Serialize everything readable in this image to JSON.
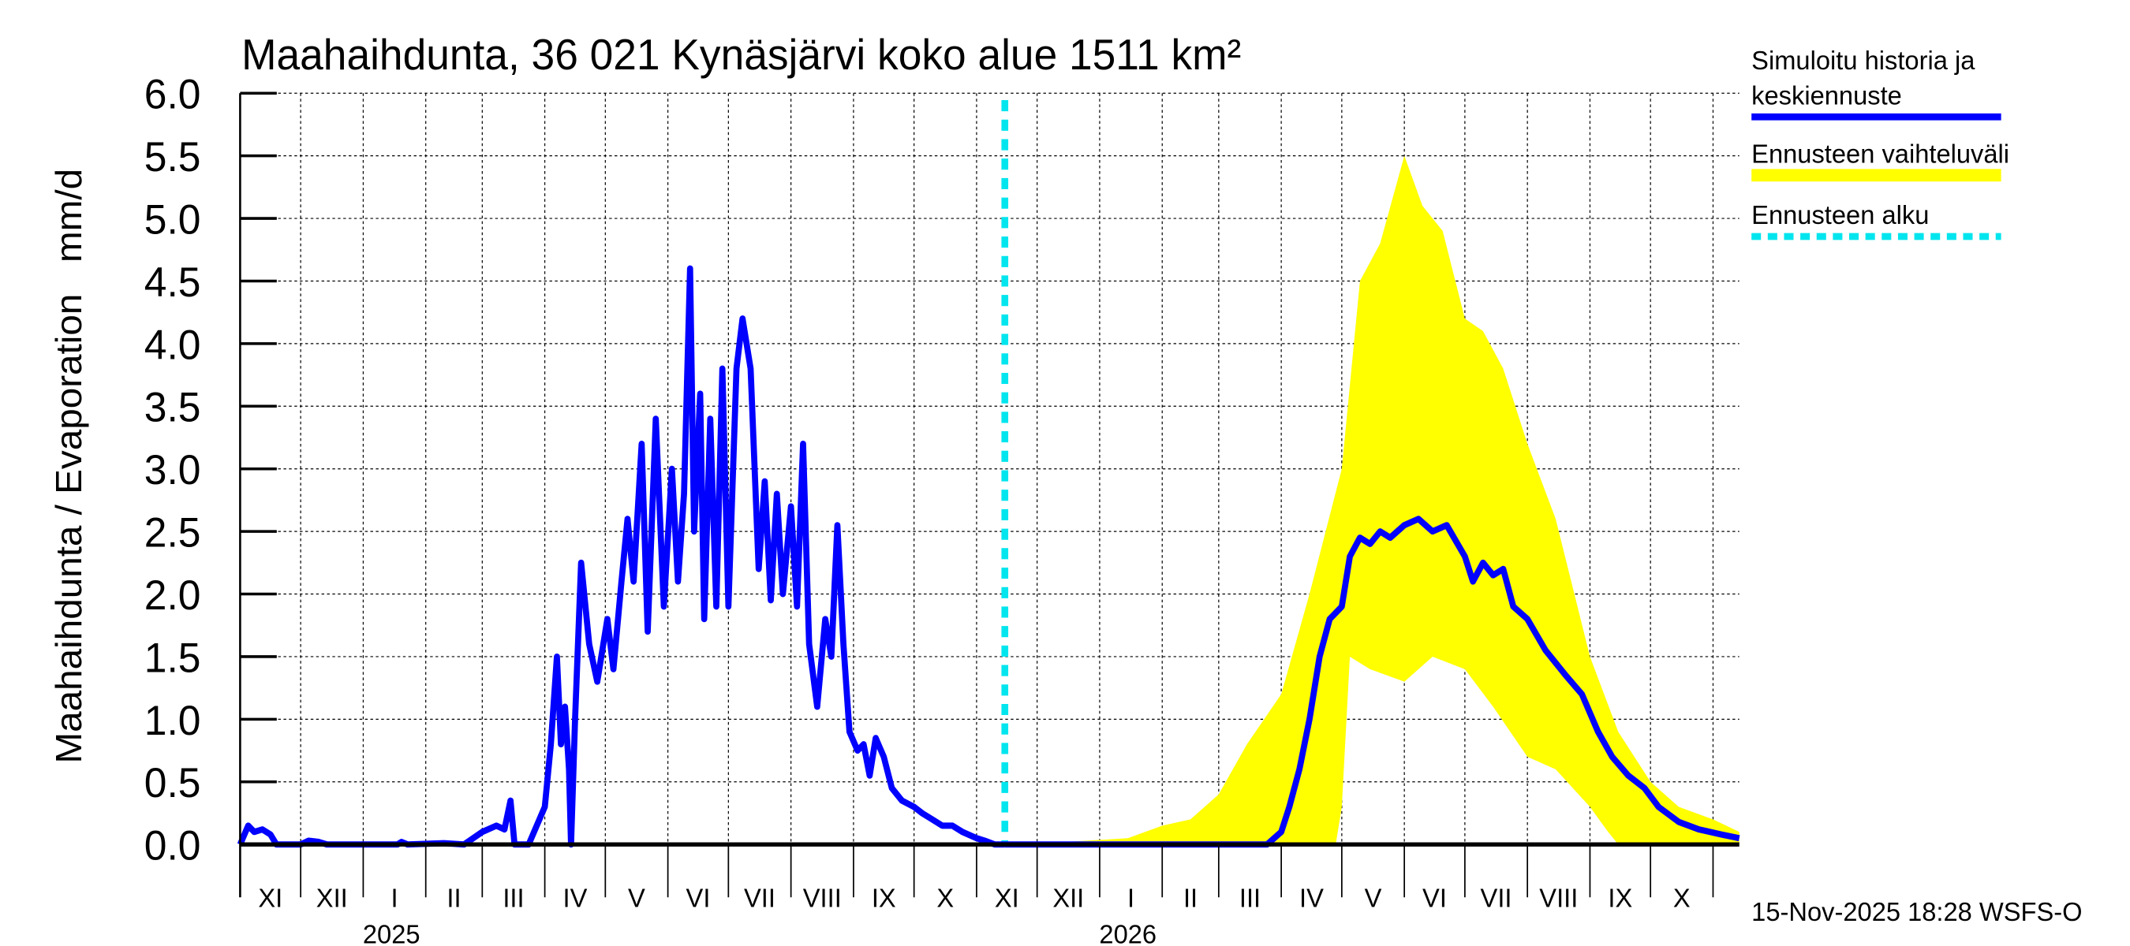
{
  "chart_data": {
    "type": "line",
    "title": "Maahaihdunta, 36 021 Kynäsjärvi koko alue 1511 km²",
    "ylabel": "Maahaihdunta / Evaporation   mm/d",
    "xlabel": "",
    "ylim": [
      0,
      6
    ],
    "xlim": [
      "2024-11-01",
      "2026-11-14"
    ],
    "yticks": [
      "0.0",
      "0.5",
      "1.0",
      "1.5",
      "2.0",
      "2.5",
      "3.0",
      "3.5",
      "4.0",
      "4.5",
      "5.0",
      "5.5",
      "6.0"
    ],
    "grid": true,
    "legend_position": "right",
    "months": [
      {
        "label": "XI",
        "start": "2024-11-01"
      },
      {
        "label": "XII",
        "start": "2024-12-01"
      },
      {
        "label": "I",
        "start": "2025-01-01"
      },
      {
        "label": "II",
        "start": "2025-02-01"
      },
      {
        "label": "III",
        "start": "2025-03-01"
      },
      {
        "label": "IV",
        "start": "2025-04-01"
      },
      {
        "label": "V",
        "start": "2025-05-01"
      },
      {
        "label": "VI",
        "start": "2025-06-01"
      },
      {
        "label": "VII",
        "start": "2025-07-01"
      },
      {
        "label": "VIII",
        "start": "2025-08-01"
      },
      {
        "label": "IX",
        "start": "2025-09-01"
      },
      {
        "label": "X",
        "start": "2025-10-01"
      },
      {
        "label": "XI",
        "start": "2025-11-01"
      },
      {
        "label": "XII",
        "start": "2025-12-01"
      },
      {
        "label": "I",
        "start": "2026-01-01"
      },
      {
        "label": "II",
        "start": "2026-02-01"
      },
      {
        "label": "III",
        "start": "2026-03-01"
      },
      {
        "label": "IV",
        "start": "2026-04-01"
      },
      {
        "label": "V",
        "start": "2026-05-01"
      },
      {
        "label": "VI",
        "start": "2026-06-01"
      },
      {
        "label": "VII",
        "start": "2026-07-01"
      },
      {
        "label": "VIII",
        "start": "2026-08-01"
      },
      {
        "label": "IX",
        "start": "2026-09-01"
      },
      {
        "label": "X",
        "start": "2026-10-01"
      },
      {
        "label": "",
        "start": "2026-11-01"
      }
    ],
    "years": [
      {
        "label": "2025",
        "date": "2025-01-15"
      },
      {
        "label": "2026",
        "date": "2026-01-15"
      }
    ],
    "forecast_start": "2025-11-15",
    "colors": {
      "history": "#0000ff",
      "band": "#ffff00",
      "forecast_start": "#00e5ee"
    },
    "series": [
      {
        "name": "Simuloitu historia ja keskiennuste",
        "kind": "history",
        "points": [
          [
            "2024-11-01",
            0
          ],
          [
            "2024-11-05",
            0.15
          ],
          [
            "2024-11-08",
            0.1
          ],
          [
            "2024-11-12",
            0.12
          ],
          [
            "2024-11-16",
            0.08
          ],
          [
            "2024-11-19",
            0
          ],
          [
            "2024-12-01",
            0
          ],
          [
            "2024-12-05",
            0.03
          ],
          [
            "2024-12-10",
            0.02
          ],
          [
            "2024-12-14",
            0
          ],
          [
            "2025-01-18",
            0
          ],
          [
            "2025-01-20",
            0.02
          ],
          [
            "2025-01-23",
            0
          ],
          [
            "2025-02-10",
            0.01
          ],
          [
            "2025-02-20",
            0
          ],
          [
            "2025-03-01",
            0.1
          ],
          [
            "2025-03-08",
            0.15
          ],
          [
            "2025-03-12",
            0.12
          ],
          [
            "2025-03-15",
            0.35
          ],
          [
            "2025-03-17",
            0
          ],
          [
            "2025-03-24",
            0
          ],
          [
            "2025-04-01",
            0.3
          ],
          [
            "2025-04-04",
            0.8
          ],
          [
            "2025-04-07",
            1.5
          ],
          [
            "2025-04-09",
            0.8
          ],
          [
            "2025-04-11",
            1.1
          ],
          [
            "2025-04-13",
            0.6
          ],
          [
            "2025-04-14",
            0
          ],
          [
            "2025-04-16",
            1.0
          ],
          [
            "2025-04-19",
            2.25
          ],
          [
            "2025-04-23",
            1.6
          ],
          [
            "2025-04-27",
            1.3
          ],
          [
            "2025-05-02",
            1.8
          ],
          [
            "2025-05-05",
            1.4
          ],
          [
            "2025-05-09",
            2.1
          ],
          [
            "2025-05-12",
            2.6
          ],
          [
            "2025-05-15",
            2.1
          ],
          [
            "2025-05-19",
            3.2
          ],
          [
            "2025-05-22",
            1.7
          ],
          [
            "2025-05-26",
            3.4
          ],
          [
            "2025-05-30",
            1.9
          ],
          [
            "2025-06-03",
            3.0
          ],
          [
            "2025-06-06",
            2.1
          ],
          [
            "2025-06-09",
            2.8
          ],
          [
            "2025-06-12",
            4.6
          ],
          [
            "2025-06-14",
            2.5
          ],
          [
            "2025-06-17",
            3.6
          ],
          [
            "2025-06-19",
            1.8
          ],
          [
            "2025-06-22",
            3.4
          ],
          [
            "2025-06-25",
            1.9
          ],
          [
            "2025-06-28",
            3.8
          ],
          [
            "2025-07-01",
            1.9
          ],
          [
            "2025-07-05",
            3.8
          ],
          [
            "2025-07-08",
            4.2
          ],
          [
            "2025-07-12",
            3.8
          ],
          [
            "2025-07-16",
            2.2
          ],
          [
            "2025-07-19",
            2.9
          ],
          [
            "2025-07-22",
            1.95
          ],
          [
            "2025-07-25",
            2.8
          ],
          [
            "2025-07-28",
            2.0
          ],
          [
            "2025-08-01",
            2.7
          ],
          [
            "2025-08-04",
            1.9
          ],
          [
            "2025-08-07",
            3.2
          ],
          [
            "2025-08-10",
            1.6
          ],
          [
            "2025-08-14",
            1.1
          ],
          [
            "2025-08-18",
            1.8
          ],
          [
            "2025-08-21",
            1.5
          ],
          [
            "2025-08-24",
            2.55
          ],
          [
            "2025-08-27",
            1.6
          ],
          [
            "2025-08-30",
            0.9
          ],
          [
            "2025-09-03",
            0.75
          ],
          [
            "2025-09-06",
            0.8
          ],
          [
            "2025-09-09",
            0.55
          ],
          [
            "2025-09-12",
            0.85
          ],
          [
            "2025-09-16",
            0.7
          ],
          [
            "2025-09-20",
            0.45
          ],
          [
            "2025-09-25",
            0.35
          ],
          [
            "2025-10-01",
            0.3
          ],
          [
            "2025-10-05",
            0.25
          ],
          [
            "2025-10-10",
            0.2
          ],
          [
            "2025-10-15",
            0.15
          ],
          [
            "2025-10-20",
            0.15
          ],
          [
            "2025-10-25",
            0.1
          ],
          [
            "2025-11-01",
            0.05
          ],
          [
            "2025-11-05",
            0.03
          ],
          [
            "2025-11-10",
            0
          ],
          [
            "2025-11-15",
            0
          ]
        ]
      },
      {
        "name": "keskiennuste",
        "kind": "median",
        "points": [
          [
            "2025-11-15",
            0
          ],
          [
            "2026-03-25",
            0
          ],
          [
            "2026-04-01",
            0.1
          ],
          [
            "2026-04-05",
            0.3
          ],
          [
            "2026-04-10",
            0.6
          ],
          [
            "2026-04-15",
            1.0
          ],
          [
            "2026-04-20",
            1.5
          ],
          [
            "2026-04-25",
            1.8
          ],
          [
            "2026-05-01",
            1.9
          ],
          [
            "2026-05-05",
            2.3
          ],
          [
            "2026-05-10",
            2.45
          ],
          [
            "2026-05-15",
            2.4
          ],
          [
            "2026-05-20",
            2.5
          ],
          [
            "2026-05-25",
            2.45
          ],
          [
            "2026-06-01",
            2.55
          ],
          [
            "2026-06-08",
            2.6
          ],
          [
            "2026-06-15",
            2.5
          ],
          [
            "2026-06-22",
            2.55
          ],
          [
            "2026-07-01",
            2.3
          ],
          [
            "2026-07-05",
            2.1
          ],
          [
            "2026-07-10",
            2.25
          ],
          [
            "2026-07-15",
            2.15
          ],
          [
            "2026-07-20",
            2.2
          ],
          [
            "2026-07-25",
            1.9
          ],
          [
            "2026-08-01",
            1.8
          ],
          [
            "2026-08-10",
            1.55
          ],
          [
            "2026-08-20",
            1.35
          ],
          [
            "2026-08-28",
            1.2
          ],
          [
            "2026-09-05",
            0.9
          ],
          [
            "2026-09-12",
            0.7
          ],
          [
            "2026-09-20",
            0.55
          ],
          [
            "2026-09-28",
            0.45
          ],
          [
            "2026-10-05",
            0.3
          ],
          [
            "2026-10-15",
            0.18
          ],
          [
            "2026-10-25",
            0.12
          ],
          [
            "2026-11-05",
            0.08
          ],
          [
            "2026-11-14",
            0.05
          ]
        ]
      },
      {
        "name": "Ennusteen vaihteluväli",
        "kind": "band",
        "upper": [
          [
            "2025-11-15",
            0
          ],
          [
            "2025-12-15",
            0.02
          ],
          [
            "2026-01-15",
            0.05
          ],
          [
            "2026-02-01",
            0.15
          ],
          [
            "2026-02-15",
            0.2
          ],
          [
            "2026-03-01",
            0.4
          ],
          [
            "2026-03-15",
            0.8
          ],
          [
            "2026-04-01",
            1.2
          ],
          [
            "2026-04-15",
            2.0
          ],
          [
            "2026-05-01",
            3.0
          ],
          [
            "2026-05-10",
            4.5
          ],
          [
            "2026-05-20",
            4.8
          ],
          [
            "2026-06-01",
            5.5
          ],
          [
            "2026-06-10",
            5.1
          ],
          [
            "2026-06-20",
            4.9
          ],
          [
            "2026-07-01",
            4.2
          ],
          [
            "2026-07-10",
            4.1
          ],
          [
            "2026-07-20",
            3.8
          ],
          [
            "2026-08-01",
            3.2
          ],
          [
            "2026-08-15",
            2.6
          ],
          [
            "2026-09-01",
            1.5
          ],
          [
            "2026-09-15",
            0.9
          ],
          [
            "2026-10-01",
            0.5
          ],
          [
            "2026-10-15",
            0.3
          ],
          [
            "2026-11-01",
            0.2
          ],
          [
            "2026-11-14",
            0.1
          ]
        ],
        "lower": [
          [
            "2025-11-15",
            0
          ],
          [
            "2026-04-28",
            0
          ],
          [
            "2026-05-01",
            0.3
          ],
          [
            "2026-05-05",
            1.5
          ],
          [
            "2026-05-15",
            1.4
          ],
          [
            "2026-06-01",
            1.3
          ],
          [
            "2026-06-15",
            1.5
          ],
          [
            "2026-07-01",
            1.4
          ],
          [
            "2026-07-15",
            1.1
          ],
          [
            "2026-08-01",
            0.7
          ],
          [
            "2026-08-15",
            0.6
          ],
          [
            "2026-09-01",
            0.3
          ],
          [
            "2026-09-10",
            0.1
          ],
          [
            "2026-09-15",
            0
          ],
          [
            "2026-11-14",
            0
          ]
        ]
      }
    ]
  },
  "legend": {
    "history_line1": "Simuloitu historia ja",
    "history_line2": "keskiennuste",
    "band": "Ennusteen vaihteluväli",
    "forecast_start": "Ennusteen alku"
  },
  "footer": {
    "timestamp": "15-Nov-2025 18:28 WSFS-O"
  }
}
